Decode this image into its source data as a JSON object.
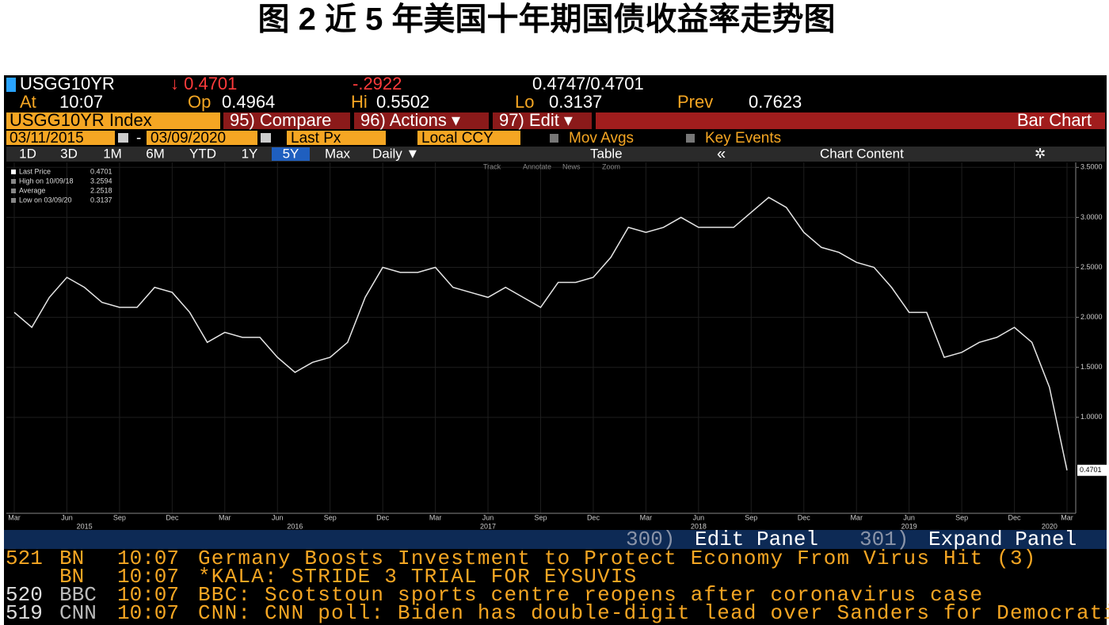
{
  "title": "图 2 近 5 年美国十年期国债收益率走势图",
  "header": {
    "ticker": "USGG10YR",
    "last": "↓ 0.4701",
    "change": "-.2922",
    "bid_ask": "0.4747/0.4701",
    "at_label": "At",
    "time": "10:07",
    "op_label": "Op",
    "op": "0.4964",
    "hi_label": "Hi",
    "hi": "0.5502",
    "lo_label": "Lo",
    "lo": "0.3137",
    "prev_label": "Prev",
    "prev": "0.7623"
  },
  "toolbar": {
    "security": "USGG10YR Index",
    "compare": "95) Compare",
    "actions": "96) Actions ▾",
    "edit": "97) Edit ▾",
    "chart_type": "Bar Chart",
    "start_date": "03/11/2015",
    "dash": "-",
    "end_date": "03/09/2020",
    "field": "Last Px",
    "currency": "Local CCY",
    "mov_avgs": "Mov Avgs",
    "key_events": "Key Events",
    "ranges": [
      "1D",
      "3D",
      "1M",
      "6M",
      "YTD",
      "1Y",
      "5Y",
      "Max"
    ],
    "selected": "5Y",
    "period": "Daily ▼",
    "table": "Table",
    "collapse": "«",
    "chart_content": "Chart Content",
    "chart_tools": [
      "Track",
      "Annotate",
      "News",
      "Zoom"
    ]
  },
  "chart_data": {
    "type": "line",
    "x": [
      "2015-03",
      "2015-04",
      "2015-05",
      "2015-06",
      "2015-07",
      "2015-08",
      "2015-09",
      "2015-10",
      "2015-11",
      "2015-12",
      "2016-01",
      "2016-02",
      "2016-03",
      "2016-04",
      "2016-05",
      "2016-06",
      "2016-07",
      "2016-08",
      "2016-09",
      "2016-10",
      "2016-11",
      "2016-12",
      "2017-01",
      "2017-02",
      "2017-03",
      "2017-04",
      "2017-05",
      "2017-06",
      "2017-07",
      "2017-08",
      "2017-09",
      "2017-10",
      "2017-11",
      "2017-12",
      "2018-01",
      "2018-02",
      "2018-03",
      "2018-04",
      "2018-05",
      "2018-06",
      "2018-07",
      "2018-08",
      "2018-09",
      "2018-10",
      "2018-11",
      "2018-12",
      "2019-01",
      "2019-02",
      "2019-03",
      "2019-04",
      "2019-05",
      "2019-06",
      "2019-07",
      "2019-08",
      "2019-09",
      "2019-10",
      "2019-11",
      "2019-12",
      "2020-01",
      "2020-02",
      "2020-03"
    ],
    "series": [
      {
        "name": "Last Price",
        "color": "#e6e6e6",
        "values": [
          2.05,
          1.9,
          2.2,
          2.4,
          2.3,
          2.15,
          2.1,
          2.1,
          2.3,
          2.25,
          2.05,
          1.75,
          1.85,
          1.8,
          1.8,
          1.6,
          1.45,
          1.55,
          1.6,
          1.75,
          2.2,
          2.5,
          2.45,
          2.45,
          2.5,
          2.3,
          2.25,
          2.2,
          2.3,
          2.2,
          2.1,
          2.35,
          2.35,
          2.4,
          2.6,
          2.9,
          2.85,
          2.9,
          3.0,
          2.9,
          2.9,
          2.9,
          3.05,
          3.2,
          3.1,
          2.85,
          2.7,
          2.65,
          2.55,
          2.5,
          2.3,
          2.05,
          2.05,
          1.6,
          1.65,
          1.75,
          1.8,
          1.9,
          1.75,
          1.3,
          0.4701
        ]
      }
    ],
    "ylim": [
      0.04,
      3.55
    ],
    "yticks": [
      {
        "value": 3.5,
        "label": "3.5000"
      },
      {
        "value": 3.0,
        "label": "3.0000"
      },
      {
        "value": 2.5,
        "label": "2.5000"
      },
      {
        "value": 2.0,
        "label": "2.0000"
      },
      {
        "value": 1.5,
        "label": "1.5000"
      },
      {
        "value": 1.0,
        "label": "1.0000"
      }
    ],
    "xticks": [
      {
        "value": "2015-03",
        "label": "Mar"
      },
      {
        "value": "2015-06",
        "label": "Jun"
      },
      {
        "value": "2015-09",
        "label": "Sep"
      },
      {
        "value": "2015-12",
        "label": "Dec"
      },
      {
        "value": "2016-03",
        "label": "Mar"
      },
      {
        "value": "2016-06",
        "label": "Jun"
      },
      {
        "value": "2016-09",
        "label": "Sep"
      },
      {
        "value": "2016-12",
        "label": "Dec"
      },
      {
        "value": "2017-03",
        "label": "Mar"
      },
      {
        "value": "2017-06",
        "label": "Jun"
      },
      {
        "value": "2017-09",
        "label": "Sep"
      },
      {
        "value": "2017-12",
        "label": "Dec"
      },
      {
        "value": "2018-03",
        "label": "Mar"
      },
      {
        "value": "2018-06",
        "label": "Jun"
      },
      {
        "value": "2018-09",
        "label": "Sep"
      },
      {
        "value": "2018-12",
        "label": "Dec"
      },
      {
        "value": "2019-03",
        "label": "Mar"
      },
      {
        "value": "2019-06",
        "label": "Jun"
      },
      {
        "value": "2019-09",
        "label": "Sep"
      },
      {
        "value": "2019-12",
        "label": "Dec"
      },
      {
        "value": "2020-03",
        "label": "Mar"
      }
    ],
    "year_labels": [
      {
        "value": "2015-07",
        "label": "2015"
      },
      {
        "value": "2016-07",
        "label": "2016"
      },
      {
        "value": "2017-06",
        "label": "2017"
      },
      {
        "value": "2018-06",
        "label": "2018"
      },
      {
        "value": "2019-06",
        "label": "2019"
      },
      {
        "value": "2020-02",
        "label": "2020"
      }
    ],
    "stats": [
      {
        "name": "Last Price",
        "value": 0.4701
      },
      {
        "name": "High on 10/09/18",
        "value": 3.2594
      },
      {
        "name": "Average",
        "value": 2.2518
      },
      {
        "name": "Low on 03/09/20",
        "value": 0.3137
      }
    ],
    "legend": "top-left",
    "grid": true
  },
  "panel": {
    "edit_num": "300)",
    "edit": "Edit Panel",
    "expand_num": "301)",
    "expand": "Expand Panel"
  },
  "news": [
    {
      "id": "521",
      "source": "BN",
      "time": "10:07",
      "headline": "Germany Boosts Investment to Protect Economy From Virus Hit (3)"
    },
    {
      "source": "BN",
      "time": "10:07",
      "headline": "*KALA: STRIDE 3 TRIAL FOR EYSUVIS"
    },
    {
      "id": "520",
      "source": "BBC",
      "time": "10:07",
      "headline": "BBC: Scotstoun sports centre reopens after coronavirus case"
    },
    {
      "id": "519",
      "source": "CNN",
      "time": "10:07",
      "headline": "CNN: CNN poll: Biden has double-digit lead over Sanders for Democratic nomination"
    }
  ]
}
